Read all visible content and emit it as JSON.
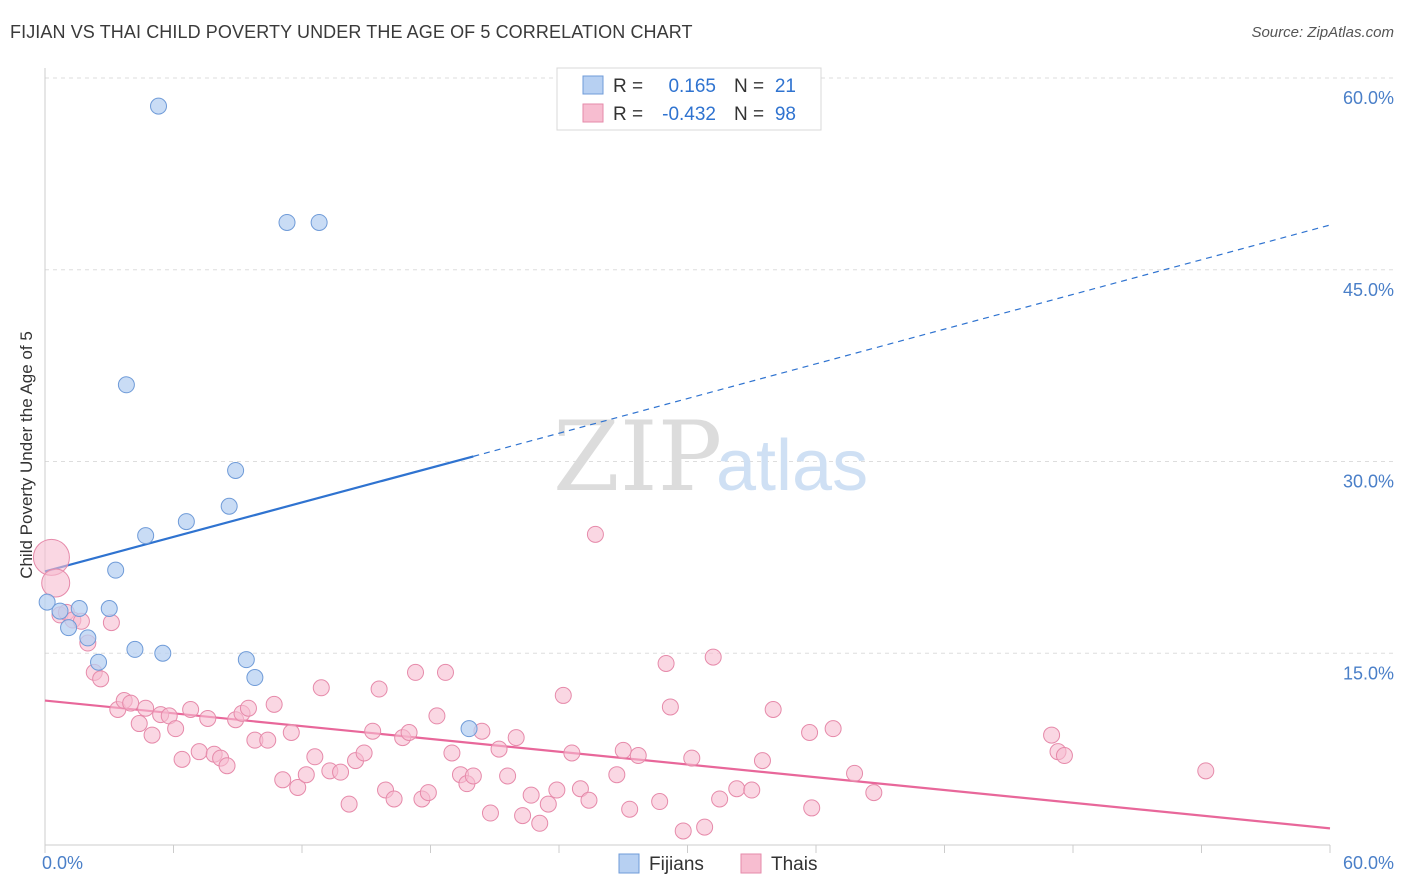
{
  "title": "FIJIAN VS THAI CHILD POVERTY UNDER THE AGE OF 5 CORRELATION CHART",
  "source": "Source: ZipAtlas.com",
  "colors": {
    "fijians_fill": "#b7d0f2",
    "fijians_stroke": "#6f9bd8",
    "fijians_line": "#2f73d0",
    "thais_fill": "#f7bdd0",
    "thais_stroke": "#e68aaa",
    "thais_line": "#e8679a",
    "tick_text": "#4a7fc8",
    "grid": "#dddddd"
  },
  "legend": {
    "row1": {
      "r_label": "R =",
      "r_value": "0.165",
      "n_label": "N =",
      "n_value": "21"
    },
    "row2": {
      "r_label": "R =",
      "r_value": "-0.432",
      "n_label": "N =",
      "n_value": "98"
    }
  },
  "watermark": {
    "zip": "ZIP",
    "atlas": "atlas"
  },
  "chart_data": {
    "type": "scatter",
    "ylabel": "Child Poverty Under the Age of 5",
    "xlim": [
      0,
      60
    ],
    "ylim": [
      0,
      60
    ],
    "x_tick_labels": [
      "0.0%",
      "60.0%"
    ],
    "y_ticks": [
      15,
      30,
      45,
      60
    ],
    "y_tick_labels": [
      "15.0%",
      "30.0%",
      "45.0%",
      "60.0%"
    ],
    "grid": true,
    "legend_position": "bottom-center",
    "series": [
      {
        "name": "Fijians",
        "points": [
          [
            0.1,
            19.0
          ],
          [
            0.7,
            18.3
          ],
          [
            1.1,
            17.0
          ],
          [
            1.6,
            18.5
          ],
          [
            2.0,
            16.2
          ],
          [
            2.5,
            14.3
          ],
          [
            3.0,
            18.5
          ],
          [
            3.3,
            21.5
          ],
          [
            3.8,
            36.0
          ],
          [
            4.2,
            15.3
          ],
          [
            4.7,
            24.2
          ],
          [
            5.3,
            57.8
          ],
          [
            5.5,
            15.0
          ],
          [
            6.6,
            25.3
          ],
          [
            8.6,
            26.5
          ],
          [
            8.9,
            29.3
          ],
          [
            9.4,
            14.5
          ],
          [
            9.8,
            13.1
          ],
          [
            11.3,
            48.7
          ],
          [
            12.8,
            48.7
          ],
          [
            19.8,
            9.1
          ]
        ],
        "trend": {
          "x_start": 0,
          "y_start": 21.4,
          "x_solid_end": 20,
          "y_solid_end": 30.4,
          "x_end": 60,
          "y_end": 48.5
        }
      },
      {
        "name": "Thais",
        "points": [
          [
            0.3,
            22.5
          ],
          [
            0.5,
            20.5
          ],
          [
            0.7,
            18.0
          ],
          [
            1.0,
            18.2
          ],
          [
            1.3,
            17.6
          ],
          [
            1.7,
            17.5
          ],
          [
            2.0,
            15.8
          ],
          [
            2.3,
            13.5
          ],
          [
            2.6,
            13.0
          ],
          [
            3.1,
            17.4
          ],
          [
            3.4,
            10.6
          ],
          [
            3.7,
            11.3
          ],
          [
            4.0,
            11.1
          ],
          [
            4.4,
            9.5
          ],
          [
            4.7,
            10.7
          ],
          [
            5.0,
            8.6
          ],
          [
            5.4,
            10.2
          ],
          [
            5.8,
            10.1
          ],
          [
            6.1,
            9.1
          ],
          [
            6.4,
            6.7
          ],
          [
            6.8,
            10.6
          ],
          [
            7.2,
            7.3
          ],
          [
            7.6,
            9.9
          ],
          [
            7.9,
            7.1
          ],
          [
            8.2,
            6.8
          ],
          [
            8.5,
            6.2
          ],
          [
            8.9,
            9.8
          ],
          [
            9.2,
            10.3
          ],
          [
            9.5,
            10.7
          ],
          [
            9.8,
            8.2
          ],
          [
            10.4,
            8.2
          ],
          [
            10.7,
            11.0
          ],
          [
            11.1,
            5.1
          ],
          [
            11.5,
            8.8
          ],
          [
            11.8,
            4.5
          ],
          [
            12.2,
            5.5
          ],
          [
            12.6,
            6.9
          ],
          [
            12.9,
            12.3
          ],
          [
            13.3,
            5.8
          ],
          [
            13.8,
            5.7
          ],
          [
            14.2,
            3.2
          ],
          [
            14.5,
            6.6
          ],
          [
            14.9,
            7.2
          ],
          [
            15.3,
            8.9
          ],
          [
            15.6,
            12.2
          ],
          [
            15.9,
            4.3
          ],
          [
            16.3,
            3.6
          ],
          [
            16.7,
            8.4
          ],
          [
            17.0,
            8.8
          ],
          [
            17.3,
            13.5
          ],
          [
            17.6,
            3.6
          ],
          [
            17.9,
            4.1
          ],
          [
            18.3,
            10.1
          ],
          [
            18.7,
            13.5
          ],
          [
            19.0,
            7.2
          ],
          [
            19.4,
            5.5
          ],
          [
            19.7,
            4.8
          ],
          [
            20.0,
            5.4
          ],
          [
            20.4,
            8.9
          ],
          [
            20.8,
            2.5
          ],
          [
            21.2,
            7.5
          ],
          [
            21.6,
            5.4
          ],
          [
            22.0,
            8.4
          ],
          [
            22.3,
            2.3
          ],
          [
            22.7,
            3.9
          ],
          [
            23.1,
            1.7
          ],
          [
            23.5,
            3.2
          ],
          [
            23.9,
            4.3
          ],
          [
            24.2,
            11.7
          ],
          [
            24.6,
            7.2
          ],
          [
            25.0,
            4.4
          ],
          [
            25.4,
            3.5
          ],
          [
            25.7,
            24.3
          ],
          [
            26.7,
            5.5
          ],
          [
            27.0,
            7.4
          ],
          [
            27.3,
            2.8
          ],
          [
            27.7,
            7.0
          ],
          [
            28.7,
            3.4
          ],
          [
            29.0,
            14.2
          ],
          [
            29.2,
            10.8
          ],
          [
            29.8,
            1.1
          ],
          [
            30.2,
            6.8
          ],
          [
            30.8,
            1.4
          ],
          [
            31.2,
            14.7
          ],
          [
            31.5,
            3.6
          ],
          [
            32.3,
            4.4
          ],
          [
            33.0,
            4.3
          ],
          [
            33.5,
            6.6
          ],
          [
            34.0,
            10.6
          ],
          [
            35.7,
            8.8
          ],
          [
            35.8,
            2.9
          ],
          [
            36.8,
            9.1
          ],
          [
            37.8,
            5.6
          ],
          [
            38.7,
            4.1
          ],
          [
            47.0,
            8.6
          ],
          [
            47.3,
            7.3
          ],
          [
            47.6,
            7.0
          ],
          [
            54.2,
            5.8
          ]
        ],
        "trend": {
          "x_start": 0,
          "y_start": 11.3,
          "x_end": 60,
          "y_end": 1.3
        }
      }
    ]
  }
}
